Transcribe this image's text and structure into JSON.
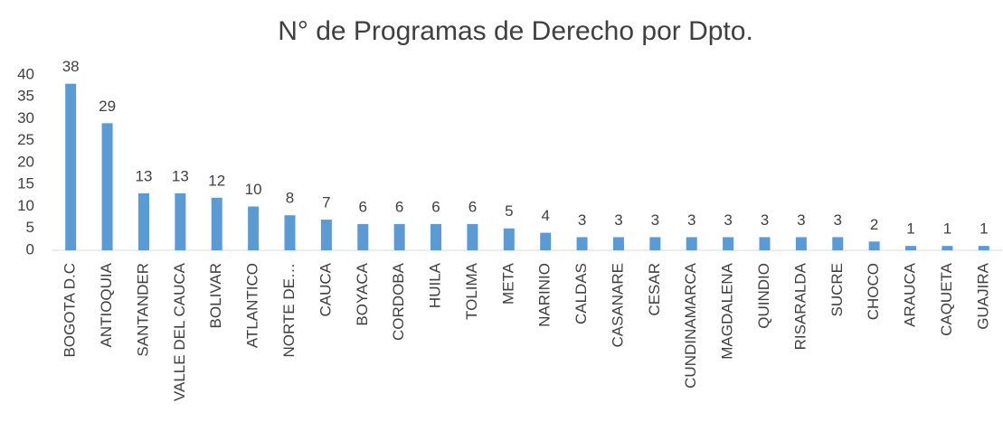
{
  "chart_data": {
    "type": "bar",
    "title": "N° de Programas de Derecho por Dpto.",
    "categories": [
      "BOGOTA D.C",
      "ANTIOQUIA",
      "SANTANDER",
      "VALLE DEL CAUCA",
      "BOLIVAR",
      "ATLANTICO",
      "NORTE DE…",
      "CAUCA",
      "BOYACA",
      "CORDOBA",
      "HUILA",
      "TOLIMA",
      "META",
      "NARINIO",
      "CALDAS",
      "CASANARE",
      "CESAR",
      "CUNDINAMARCA",
      "MAGDALENA",
      "QUINDIO",
      "RISARALDA",
      "SUCRE",
      "CHOCO",
      "ARAUCA",
      "CAQUETA",
      "GUAJIRA"
    ],
    "values": [
      38,
      29,
      13,
      13,
      12,
      10,
      8,
      7,
      6,
      6,
      6,
      6,
      5,
      4,
      3,
      3,
      3,
      3,
      3,
      3,
      3,
      3,
      2,
      1,
      1,
      1
    ],
    "color": "#5b9bd5",
    "ylim": [
      0,
      40
    ],
    "yticks": [
      0,
      5,
      10,
      15,
      20,
      25,
      30,
      35,
      40
    ],
    "grid": false
  }
}
